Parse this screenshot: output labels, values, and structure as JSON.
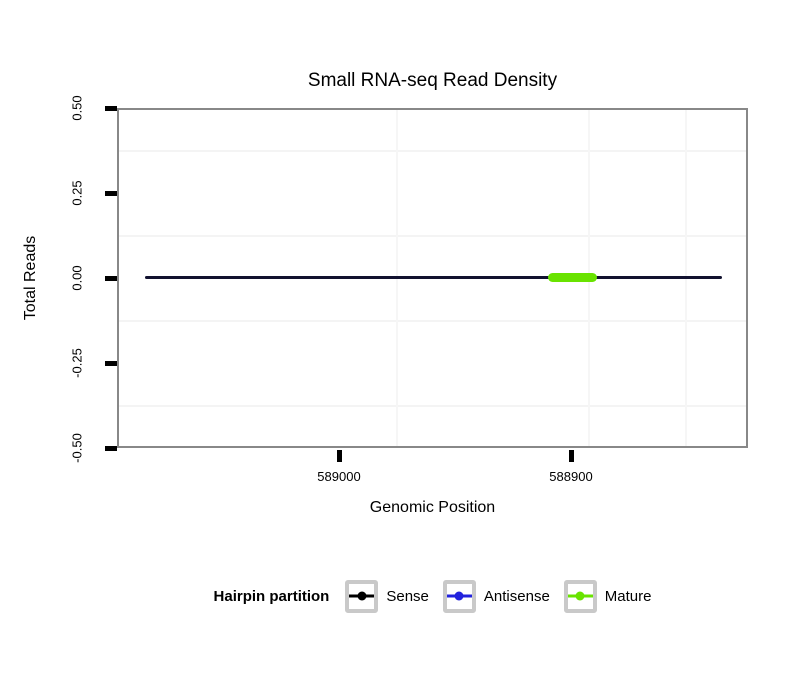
{
  "chart_data": {
    "type": "line",
    "title": "Small RNA-seq Read Density",
    "xlabel": "Genomic Position",
    "ylabel": "Total Reads",
    "x_axis": {
      "reversed": true,
      "domain": [
        589096,
        588824
      ],
      "ticks": [
        589000,
        588900
      ],
      "tick_labels": [
        "589000",
        "588900"
      ]
    },
    "y_axis": {
      "domain": [
        -0.5,
        0.5
      ],
      "ticks": [
        0.5,
        0.25,
        0.0,
        -0.25,
        -0.5
      ],
      "tick_labels": [
        "0.50",
        "0.25",
        "0.00",
        "-0.25",
        "-0.50"
      ]
    },
    "series": [
      {
        "name": "Sense",
        "color": "#000000",
        "x": [
          589085,
          588835
        ],
        "y": [
          0,
          0
        ]
      },
      {
        "name": "Antisense",
        "color": "#2222dd",
        "x": [
          589085,
          588835
        ],
        "y": [
          0,
          0
        ]
      },
      {
        "name": "Mature",
        "color": "#69e300",
        "x": [
          588910,
          588889
        ],
        "y": [
          0,
          0
        ]
      }
    ],
    "legend_position": "bottom",
    "grid": "faint minor gridlines on white panel"
  },
  "colors": {
    "coverage_line": "#11112f",
    "mature_segment": "#69e300",
    "panel_border": "#888888",
    "legend_key_border": "#c9c9c9"
  },
  "legend": {
    "title": "Hairpin partition",
    "items": [
      {
        "label": "Sense",
        "color": "#000000"
      },
      {
        "label": "Antisense",
        "color": "#2222dd"
      },
      {
        "label": "Mature",
        "color": "#69e300"
      }
    ]
  }
}
